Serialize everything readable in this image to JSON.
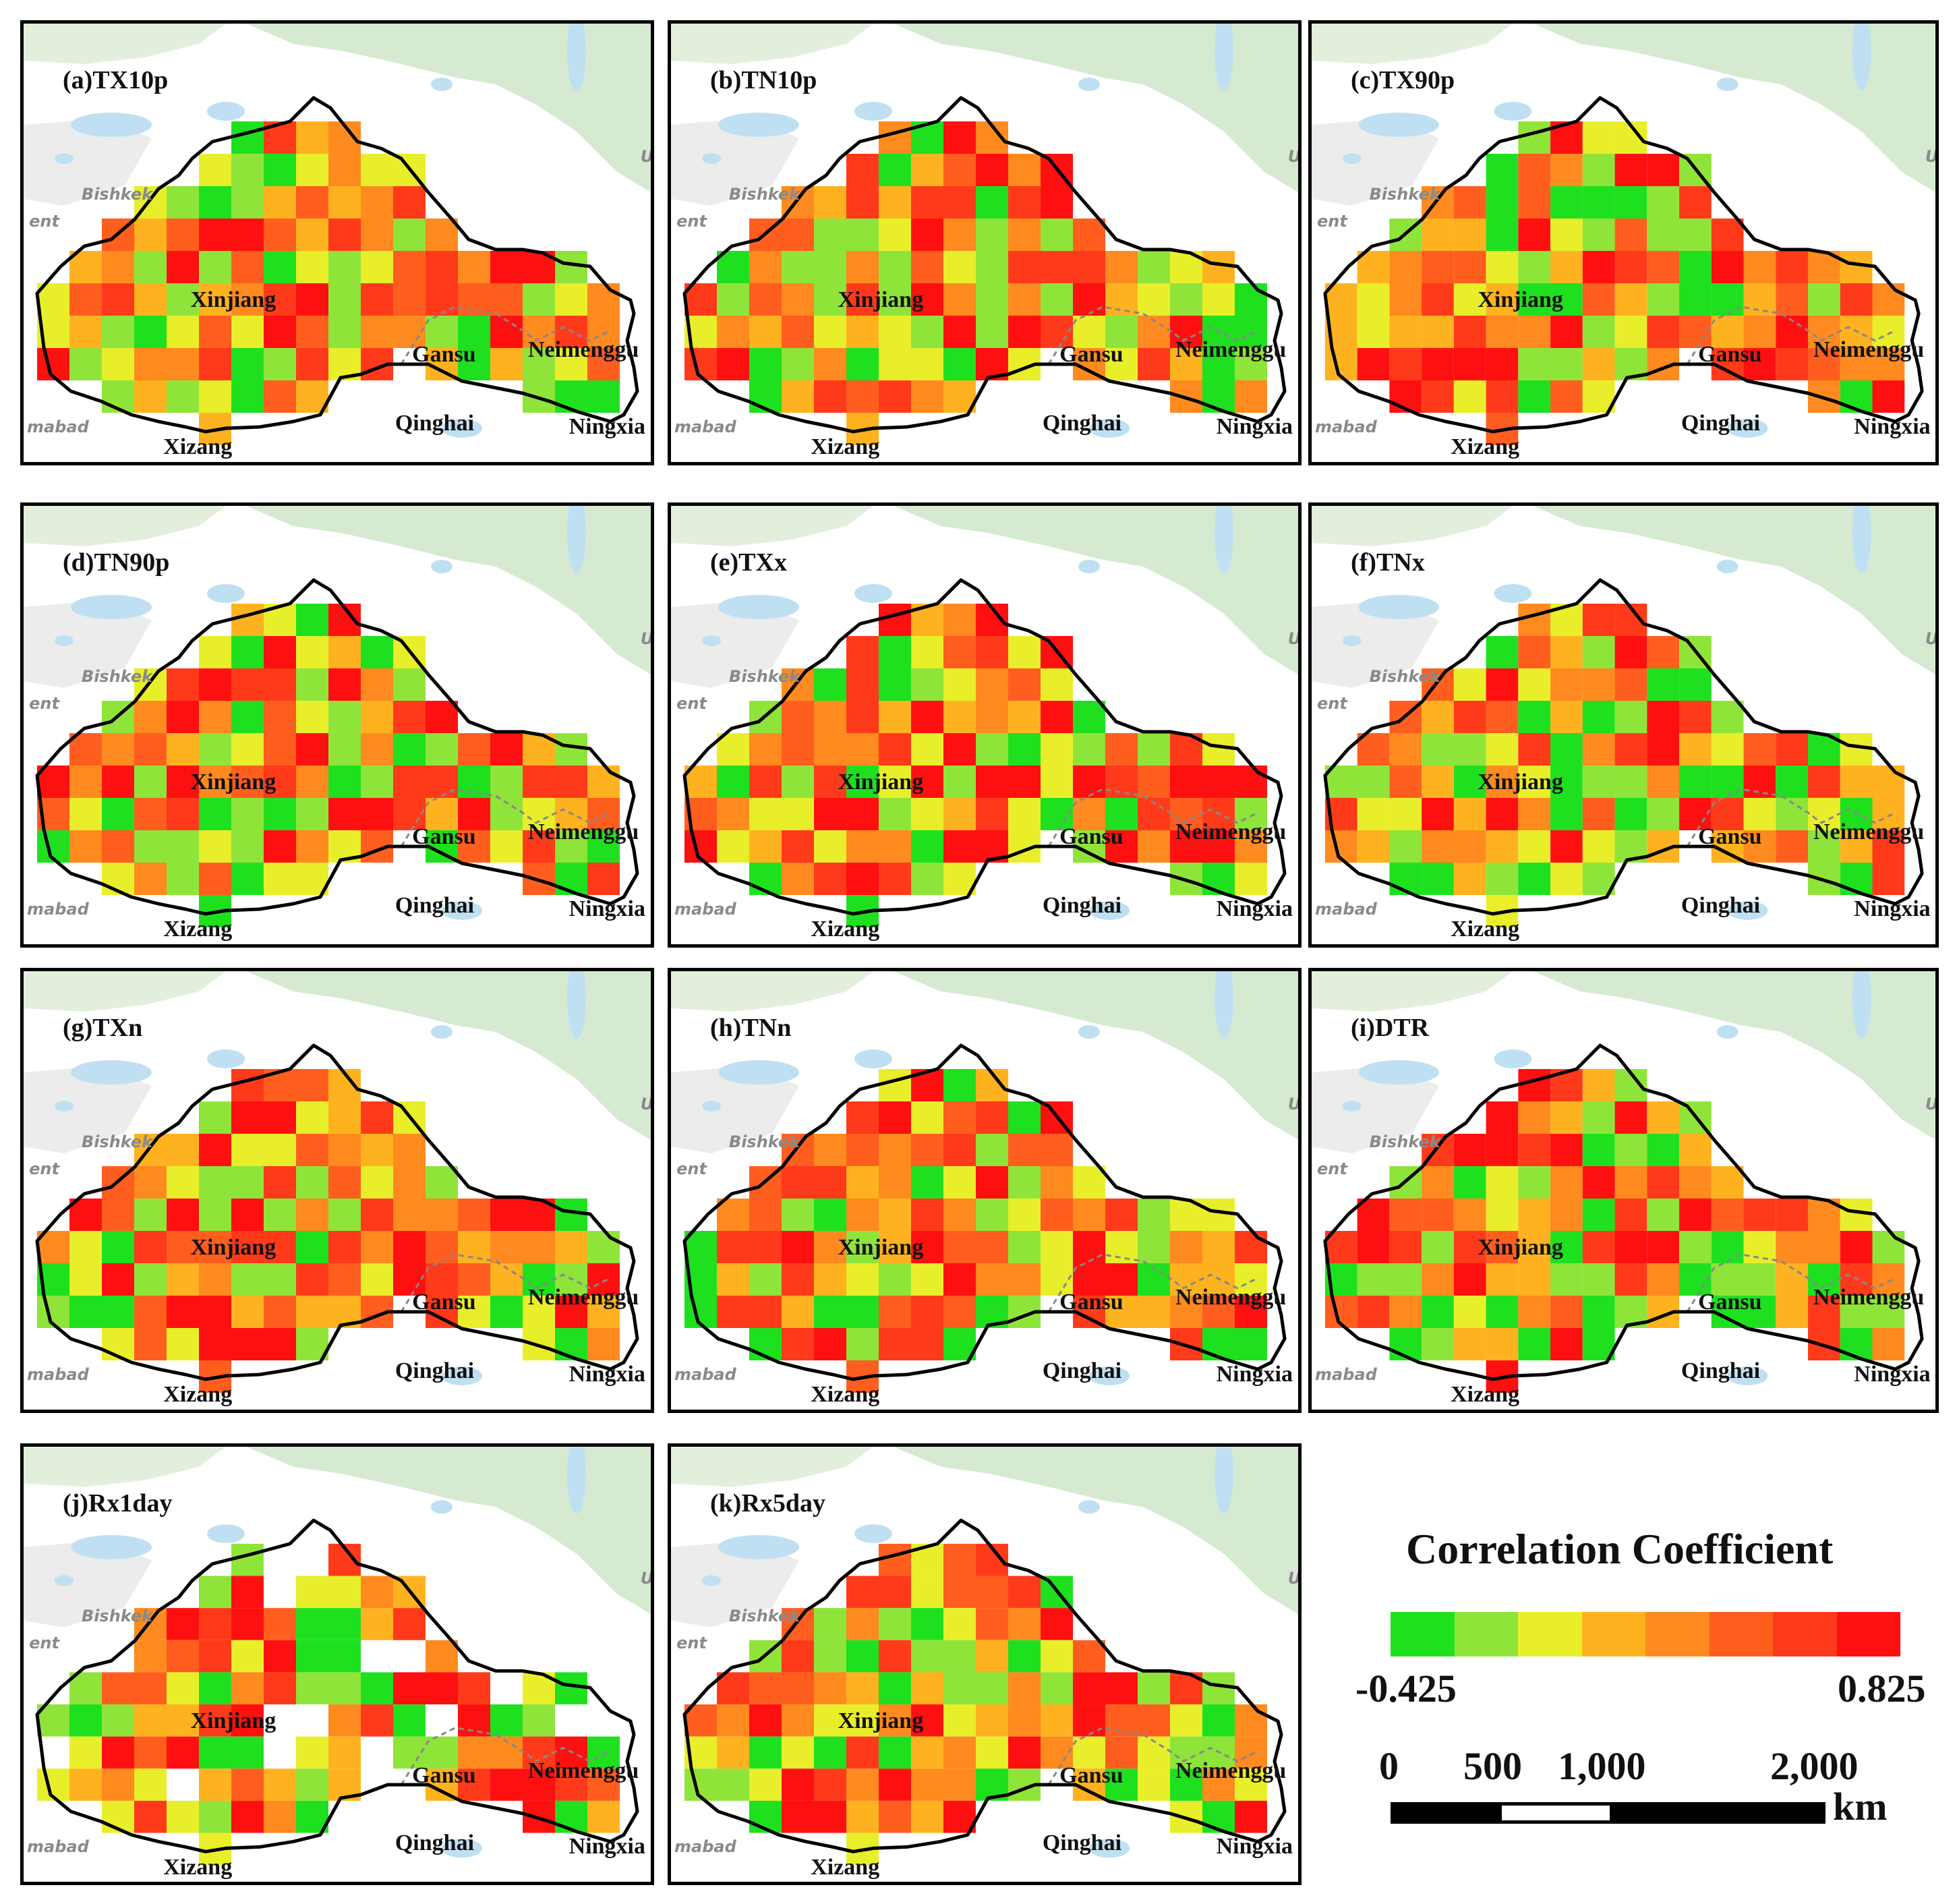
{
  "panels": [
    {
      "id": "a",
      "title": "(a)TX10p",
      "seed": 11
    },
    {
      "id": "b",
      "title": "(b)TN10p",
      "seed": 23
    },
    {
      "id": "c",
      "title": "(c)TX90p",
      "seed": 37
    },
    {
      "id": "d",
      "title": "(d)TN90p",
      "seed": 41
    },
    {
      "id": "e",
      "title": "(e)TXx",
      "seed": 53
    },
    {
      "id": "f",
      "title": "(f)TNx",
      "seed": 67
    },
    {
      "id": "g",
      "title": "(g)TXn",
      "seed": 71
    },
    {
      "id": "h",
      "title": "(h)TNn",
      "seed": 83
    },
    {
      "id": "i",
      "title": "(i)DTR",
      "seed": 97
    },
    {
      "id": "j",
      "title": "(j)Rx1day",
      "seed": 101
    },
    {
      "id": "k",
      "title": "(k)Rx5day",
      "seed": 113
    }
  ],
  "map_labels": {
    "xinjiang": "Xinjiang",
    "gansu": "Gansu",
    "neimenggu": "Neimenggu",
    "qinghai": "Qinghai",
    "ningxia": "Ningxia",
    "xizang": "Xizang",
    "bishkek": "Bishkek",
    "ent": "ent",
    "mabad": "mabad",
    "ul": "Ul"
  },
  "legend": {
    "title": "Correlation Coefficient",
    "min_label": "-0.425",
    "max_label": "0.825",
    "colors": [
      "#1fe01f",
      "#8fe43a",
      "#e8ef2a",
      "#ffb21f",
      "#ff8a1f",
      "#ff5e1f",
      "#ff3a1a",
      "#ff1010"
    ]
  },
  "scale": {
    "labels": [
      "0",
      "500",
      "1,000",
      "2,000"
    ],
    "unit": "km"
  }
}
